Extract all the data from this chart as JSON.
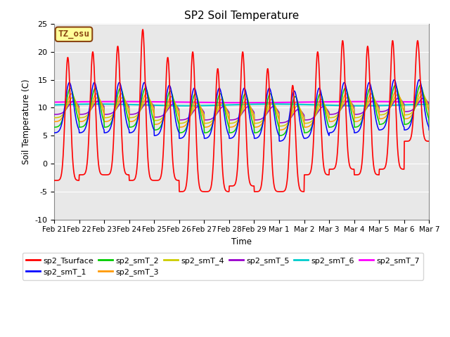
{
  "title": "SP2 Soil Temperature",
  "ylabel": "Soil Temperature (C)",
  "xlabel": "Time",
  "ylim": [
    -10,
    25
  ],
  "background_color": "#e8e8e8",
  "annotation_text": "TZ_osu",
  "annotation_bg": "#ffff99",
  "annotation_border": "#8b4513",
  "series_colors": {
    "sp2_Tsurface": "#ff0000",
    "sp2_smT_1": "#0000ff",
    "sp2_smT_2": "#00cc00",
    "sp2_smT_3": "#ff9900",
    "sp2_smT_4": "#cccc00",
    "sp2_smT_5": "#9900cc",
    "sp2_smT_6": "#00cccc",
    "sp2_smT_7": "#ff00ff"
  },
  "x_tick_labels": [
    "Feb 21",
    "Feb 22",
    "Feb 23",
    "Feb 24",
    "Feb 25",
    "Feb 26",
    "Feb 27",
    "Feb 28",
    "Feb 29",
    "Mar 1",
    "Mar 2",
    "Mar 3",
    "Mar 4",
    "Mar 5",
    "Mar 6",
    "Mar 7"
  ],
  "yticks": [
    -10,
    -5,
    0,
    5,
    10,
    15,
    20,
    25
  ]
}
